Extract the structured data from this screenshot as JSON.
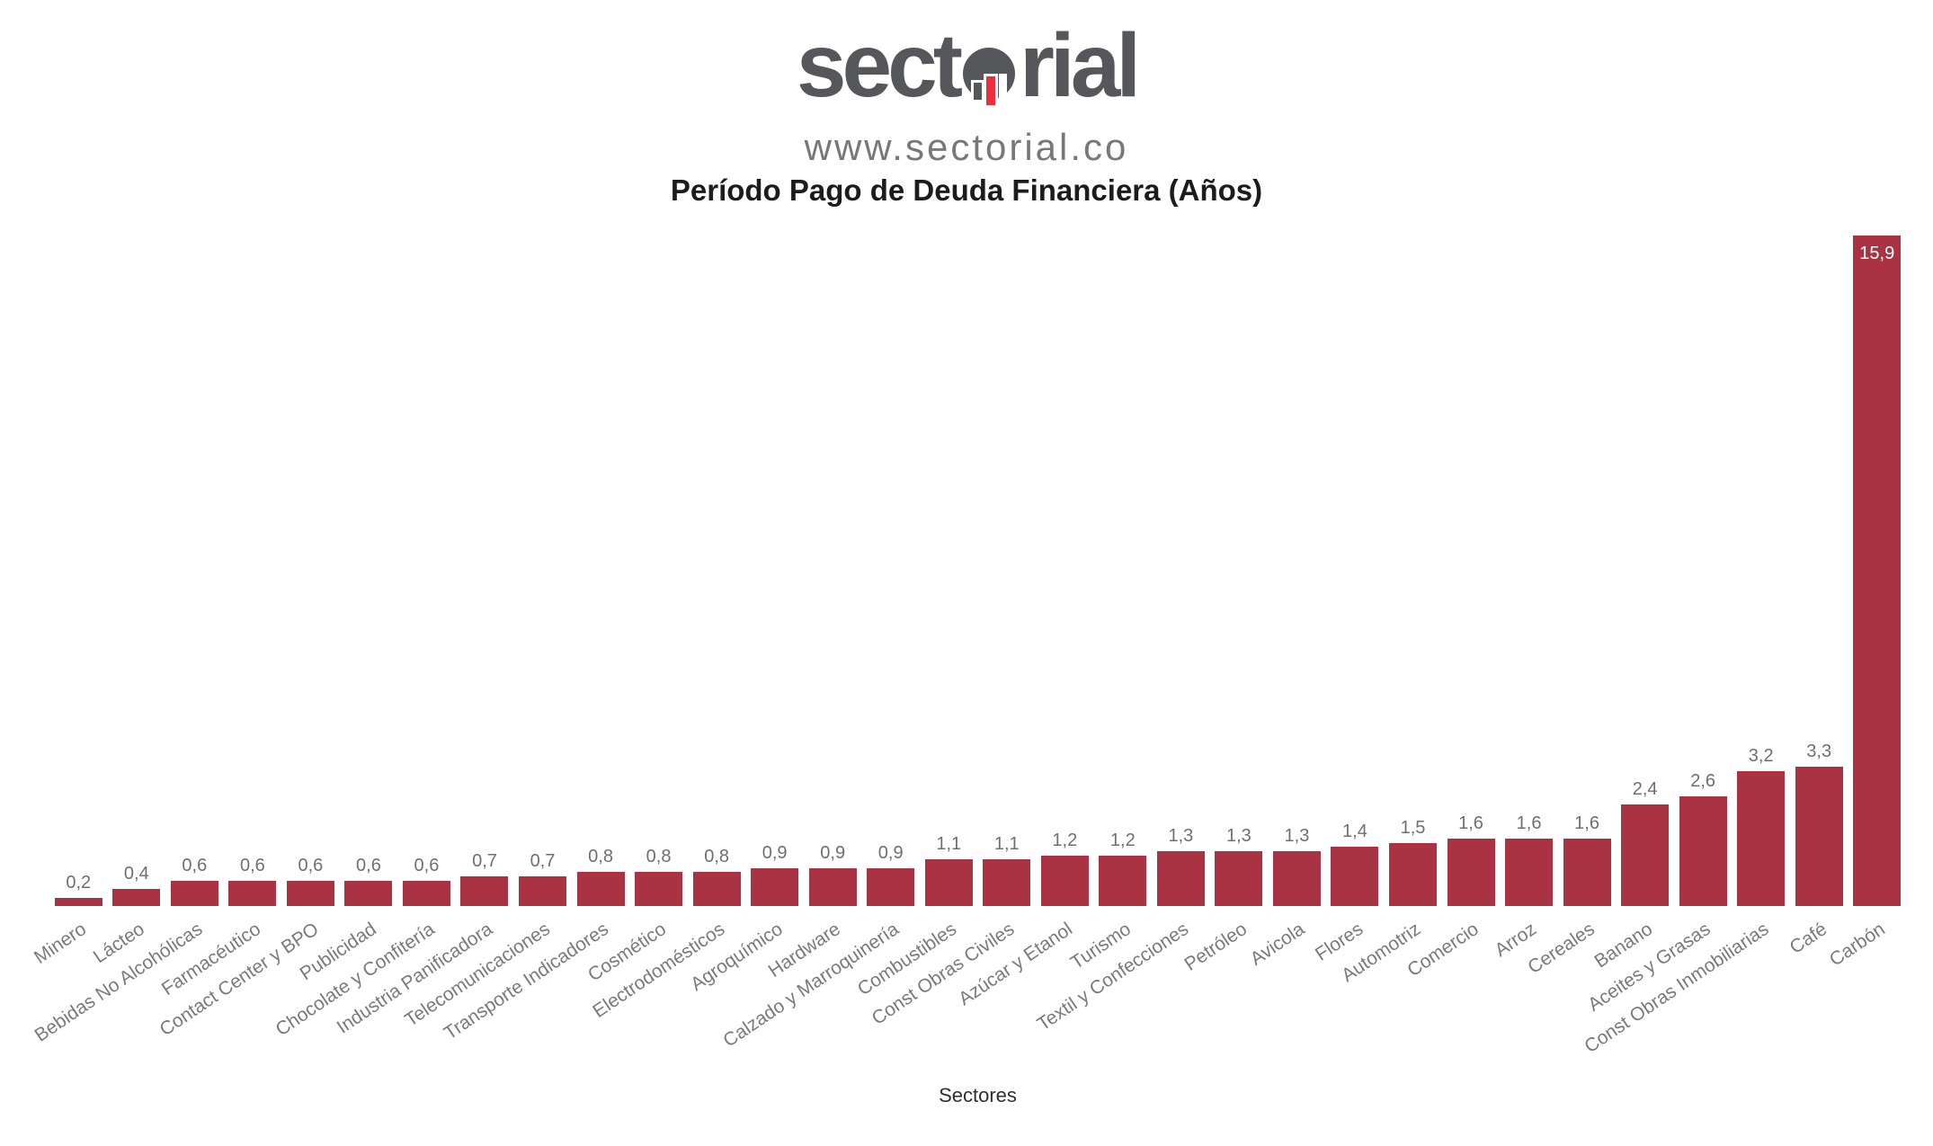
{
  "header": {
    "logo_text_left": "sect",
    "logo_text_right": "rial",
    "url": "www.sectorial.co",
    "title": "Período Pago de Deuda Financiera (Años)"
  },
  "colors": {
    "bar": "#a93342",
    "logo_gray": "#56575a",
    "logo_red": "#ee2e3e",
    "value_label": "#6f6f6f",
    "category_label": "#7a7a7a",
    "inside_value_label": "#ffffff",
    "title_text": "#1c1c1c"
  },
  "chart_data": {
    "type": "bar",
    "title": "Período Pago de Deuda Financiera (Años)",
    "xlabel": "Sectores",
    "ylabel": "",
    "ylim": [
      0,
      16.9
    ],
    "grid": false,
    "legend": false,
    "value_label_format": "decimal-comma",
    "categories": [
      "Minero",
      "Lácteo",
      "Bebidas No Alcohólicas",
      "Farmacéutico",
      "Contact Center y BPO",
      "Publicidad",
      "Chocolate y Confitería",
      "Industria Panificadora",
      "Telecomunicaciones",
      "Transporte Indicadores",
      "Cosmético",
      "Electrodomésticos",
      "Agroquímico",
      "Hardware",
      "Calzado y Marroquinería",
      "Combustibles",
      "Const Obras Civiles",
      "Azúcar y Etanol",
      "Turismo",
      "Textil y Confecciones",
      "Petróleo",
      "Avicola",
      "Flores",
      "Automotriz",
      "Comercio",
      "Arroz",
      "Cereales",
      "Banano",
      "Aceites y Grasas",
      "Const Obras Inmobiliarias",
      "Café",
      "Carbón"
    ],
    "values": [
      0.2,
      0.4,
      0.6,
      0.6,
      0.6,
      0.6,
      0.6,
      0.7,
      0.7,
      0.8,
      0.8,
      0.8,
      0.9,
      0.9,
      0.9,
      1.1,
      1.1,
      1.2,
      1.2,
      1.3,
      1.3,
      1.3,
      1.4,
      1.5,
      1.6,
      1.6,
      1.6,
      2.4,
      2.6,
      3.2,
      3.3,
      15.9
    ]
  }
}
